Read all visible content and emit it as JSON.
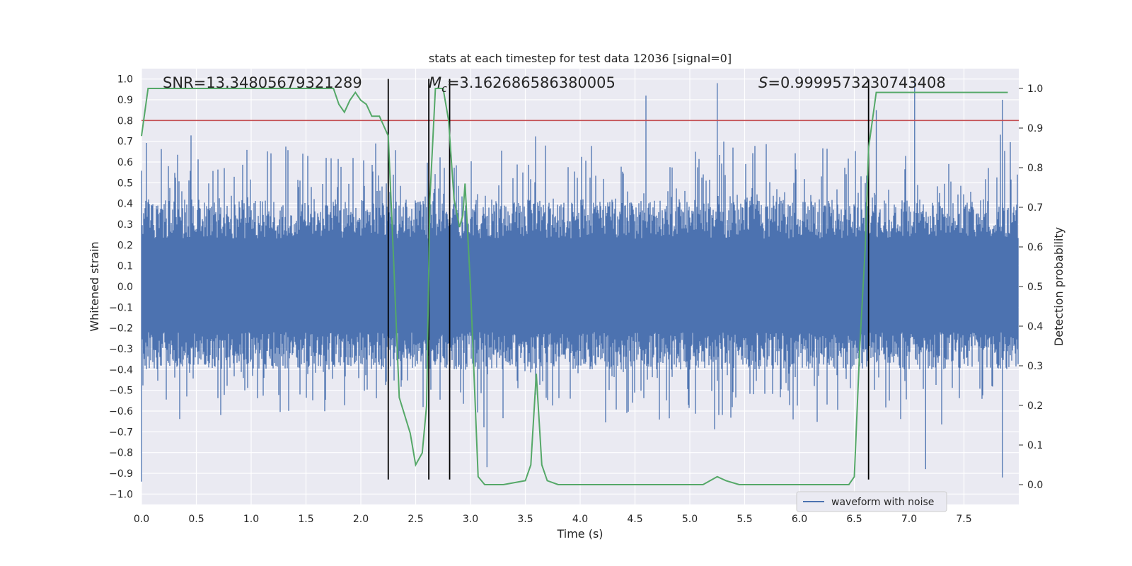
{
  "chart_data": {
    "type": "line",
    "title": "stats at each timestep for test data 12036 [signal=0]",
    "xlabel": "Time (s)",
    "ylabel_left": "Whitened strain",
    "ylabel_right": "Detection probability",
    "xlim": [
      0.0,
      8.0
    ],
    "ylim_left": [
      -1.05,
      1.05
    ],
    "ylim_right": [
      -0.05,
      1.05
    ],
    "x_ticks": [
      0.0,
      0.5,
      1.0,
      1.5,
      2.0,
      2.5,
      3.0,
      3.5,
      4.0,
      4.5,
      5.0,
      5.5,
      6.0,
      6.5,
      7.0,
      7.5
    ],
    "x_tick_labels": [
      "0.0",
      "0.5",
      "1.0",
      "1.5",
      "2.0",
      "2.5",
      "3.0",
      "3.5",
      "4.0",
      "4.5",
      "5.0",
      "5.5",
      "6.0",
      "6.5",
      "7.0",
      "7.5"
    ],
    "y_left_ticks": [
      1.0,
      0.9,
      0.8,
      0.7,
      0.6,
      0.5,
      0.4,
      0.3,
      0.2,
      0.1,
      0.0,
      -0.1,
      -0.2,
      -0.3,
      -0.4,
      -0.5,
      -0.6,
      -0.7,
      -0.8,
      -0.9,
      -1.0
    ],
    "y_left_tick_labels": [
      "1.0",
      "0.9",
      "0.8",
      "0.7",
      "0.6",
      "0.5",
      "0.4",
      "0.3",
      "0.2",
      "0.1",
      "0.0",
      "−0.1",
      "−0.2",
      "−0.3",
      "−0.4",
      "−0.5",
      "−0.6",
      "−0.7",
      "−0.8",
      "−0.9",
      "−1.0"
    ],
    "y_right_ticks": [
      1.0,
      0.9,
      0.8,
      0.7,
      0.6,
      0.5,
      0.4,
      0.3,
      0.2,
      0.1,
      0.0
    ],
    "y_right_tick_labels": [
      "1.0",
      "0.9",
      "0.8",
      "0.7",
      "0.6",
      "0.5",
      "0.4",
      "0.3",
      "0.2",
      "0.1",
      "0.0"
    ],
    "annotations": {
      "snr": "SNR=13.34805679321289",
      "mc_symbol": "M",
      "mc_subscript": "c",
      "mc_value": "=3.162686586380005",
      "s_symbol": "S",
      "s_value": "=0.9999573230743408"
    },
    "threshold_line": {
      "axis": "left",
      "y": 0.8,
      "color": "#c44e52"
    },
    "vertical_lines": [
      2.25,
      2.62,
      2.81,
      6.63
    ],
    "legend": {
      "label": "waveform with noise",
      "location": "lower-right"
    },
    "series": [
      {
        "name": "waveform with noise",
        "axis": "left",
        "color": "#4c72b0",
        "style": "dense noise trace",
        "typical_upper": 0.42,
        "typical_lower": -0.4,
        "max_peak": 1.0,
        "min_peak": -0.94
      },
      {
        "name": "detection probability",
        "axis": "right",
        "color": "#55a868",
        "x": [
          0.0,
          0.06,
          0.2,
          0.5,
          1.0,
          1.5,
          1.75,
          1.8,
          1.85,
          1.9,
          1.95,
          2.0,
          2.05,
          2.1,
          2.17,
          2.25,
          2.3,
          2.35,
          2.45,
          2.5,
          2.56,
          2.6,
          2.63,
          2.68,
          2.75,
          2.8,
          2.85,
          2.9,
          2.93,
          2.95,
          3.0,
          3.07,
          3.13,
          3.3,
          3.5,
          3.55,
          3.6,
          3.65,
          3.7,
          3.8,
          4.0,
          4.3,
          4.5,
          4.7,
          5.0,
          5.12,
          5.25,
          5.33,
          5.45,
          5.6,
          6.0,
          6.2,
          6.45,
          6.5,
          6.55,
          6.6,
          6.63,
          6.7,
          6.76,
          6.9,
          7.05,
          7.2,
          7.5,
          7.9
        ],
        "y": [
          0.88,
          1.0,
          1.0,
          1.0,
          1.0,
          1.0,
          1.0,
          0.96,
          0.94,
          0.97,
          0.99,
          0.97,
          0.96,
          0.93,
          0.93,
          0.88,
          0.56,
          0.22,
          0.13,
          0.05,
          0.08,
          0.2,
          0.72,
          1.0,
          1.0,
          0.92,
          0.72,
          0.65,
          0.68,
          0.76,
          0.5,
          0.02,
          0.0,
          0.0,
          0.01,
          0.05,
          0.28,
          0.05,
          0.01,
          0.0,
          0.0,
          0.0,
          0.0,
          0.0,
          0.0,
          0.0,
          0.02,
          0.01,
          0.0,
          0.0,
          0.0,
          0.0,
          0.0,
          0.02,
          0.35,
          0.6,
          0.85,
          0.99,
          0.99,
          0.99,
          0.99,
          0.99,
          0.99,
          0.99
        ]
      }
    ]
  }
}
